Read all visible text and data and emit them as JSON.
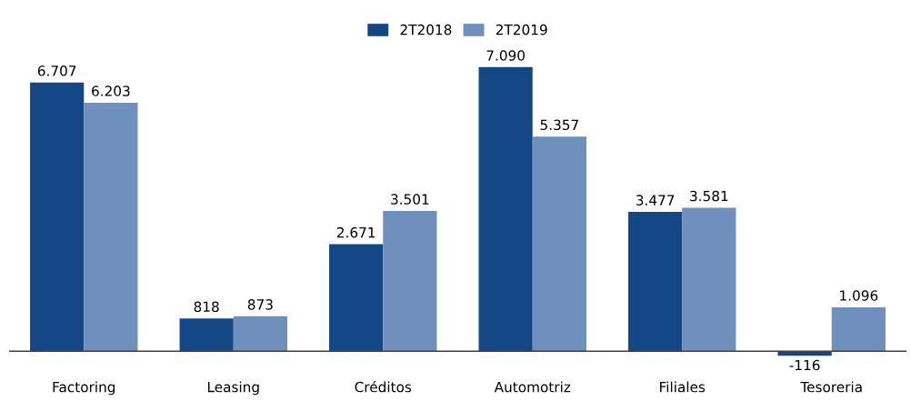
{
  "chart_data": {
    "type": "bar",
    "categories": [
      "Factoring",
      "Leasing",
      "Créditos",
      "Automotriz",
      "Filiales",
      "Tesoreria"
    ],
    "series": [
      {
        "name": "2T2018",
        "color": "#134785",
        "values": [
          6707,
          818,
          2671,
          7090,
          3477,
          -116
        ],
        "value_labels": [
          "6.707",
          "818",
          "2.671",
          "7.090",
          "3.477",
          "-116"
        ]
      },
      {
        "name": "2T2019",
        "color": "#6f8fbc",
        "values": [
          6203,
          873,
          3501,
          5357,
          3581,
          1096
        ],
        "value_labels": [
          "6.203",
          "873",
          "3.501",
          "5.357",
          "3.581",
          "1.096"
        ]
      }
    ],
    "legend": "top",
    "grid": false
  }
}
